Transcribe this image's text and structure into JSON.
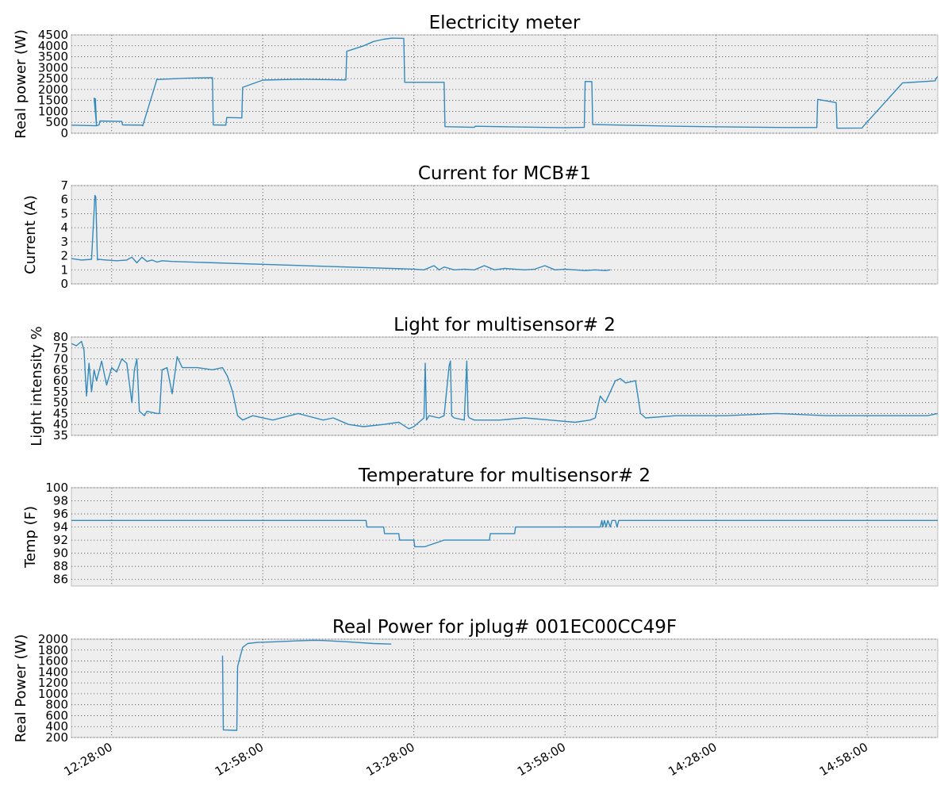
{
  "figure": {
    "line_color": "#348abd",
    "bg_color": "#eeeeee",
    "grid": true,
    "grid_style": "dotted"
  },
  "x_ticks": [
    "12:28:00",
    "12:58:00",
    "13:28:00",
    "13:58:00",
    "14:28:00",
    "14:58:00"
  ],
  "chart_data": [
    {
      "type": "line",
      "title": "Electricity meter",
      "ylabel": "Real power (W)",
      "xlim": [
        "12:20:00",
        "15:12:00"
      ],
      "ylim": [
        0,
        4500
      ],
      "yticks": [
        0,
        500,
        1000,
        1500,
        2000,
        2500,
        3000,
        3500,
        4000,
        4500
      ],
      "series": [
        {
          "x": [
            "12:20:00",
            "12:25:00",
            "12:24:30",
            "12:24:45",
            "12:25:00",
            "12:25:30",
            "12:25:40",
            "12:30:00",
            "12:30:10",
            "12:34:00",
            "12:34:10",
            "12:37:00",
            "12:37:10",
            "12:43:00",
            "12:48:00",
            "12:48:10",
            "12:50:40",
            "12:50:50",
            "12:53:50",
            "12:54:00",
            "12:58:00",
            "13:05:00",
            "13:14:30",
            "13:14:40",
            "13:18:00",
            "13:20:00",
            "13:22:00",
            "13:23:40",
            "13:26:00",
            "13:26:10",
            "13:34:00",
            "13:34:10",
            "13:40:00",
            "13:40:10",
            "13:58:00",
            "14:01:50",
            "14:02:00",
            "14:03:20",
            "14:03:30",
            "14:20:00",
            "14:34:00",
            "14:42:00",
            "14:48:00",
            "14:48:10",
            "14:51:50",
            "14:52:00",
            "14:57:00",
            "14:57:10",
            "15:05:00",
            "15:11:30",
            "15:11:40",
            "15:12:00"
          ],
          "y": [
            370,
            340,
            1600,
            1580,
            340,
            380,
            560,
            540,
            380,
            370,
            340,
            2480,
            2460,
            2520,
            2540,
            380,
            370,
            720,
            700,
            2100,
            2430,
            2470,
            2440,
            3750,
            4000,
            4200,
            4300,
            4350,
            4340,
            2330,
            2330,
            300,
            270,
            320,
            250,
            270,
            2370,
            2360,
            400,
            320,
            280,
            260,
            260,
            1550,
            1400,
            230,
            240,
            300,
            2300,
            2400,
            2500,
            2600
          ]
        }
      ]
    },
    {
      "type": "line",
      "title": "Current for MCB#1",
      "ylabel": "Current (A)",
      "xlim": [
        "12:20:00",
        "15:12:00"
      ],
      "ylim": [
        0,
        7
      ],
      "yticks": [
        0,
        1,
        2,
        3,
        4,
        5,
        6,
        7
      ],
      "series": [
        {
          "x": [
            "12:20:00",
            "12:22:00",
            "12:24:00",
            "12:24:40",
            "12:24:50",
            "12:25:10",
            "12:25:20",
            "12:27:00",
            "12:29:00",
            "12:31:00",
            "12:32:00",
            "12:33:00",
            "12:34:00",
            "12:35:00",
            "12:36:00",
            "12:37:00",
            "12:38:00",
            "12:40:00",
            "13:28:00",
            "13:30:00",
            "13:32:00",
            "13:33:00",
            "13:34:00",
            "13:36:00",
            "13:38:00",
            "13:40:00",
            "13:42:00",
            "13:44:00",
            "13:46:00",
            "13:48:00",
            "13:50:00",
            "13:52:00",
            "13:54:00",
            "13:56:00",
            "13:58:00",
            "14:00:00",
            "14:02:00",
            "14:04:00",
            "14:06:00",
            "14:07:00"
          ],
          "y": [
            1.8,
            1.7,
            1.75,
            6.3,
            6.2,
            1.7,
            1.75,
            1.7,
            1.65,
            1.7,
            1.9,
            1.5,
            1.9,
            1.6,
            1.7,
            1.55,
            1.65,
            1.6,
            1.05,
            1.0,
            1.3,
            1.0,
            1.2,
            1.0,
            1.05,
            1.0,
            1.3,
            1.0,
            1.1,
            1.05,
            1.0,
            1.05,
            1.3,
            1.0,
            1.05,
            1.0,
            0.95,
            1.0,
            0.95,
            1.0
          ]
        }
      ]
    },
    {
      "type": "line",
      "title": "Light for multisensor# 2",
      "ylabel": "Light intensity %",
      "xlim": [
        "12:20:00",
        "15:12:00"
      ],
      "ylim": [
        35,
        80
      ],
      "yticks": [
        35,
        40,
        45,
        50,
        55,
        60,
        65,
        70,
        75,
        80
      ],
      "series": [
        {
          "x": [
            "12:20:00",
            "12:21:00",
            "12:22:00",
            "12:22:30",
            "12:23:00",
            "12:23:30",
            "12:24:00",
            "12:24:30",
            "12:25:00",
            "12:26:00",
            "12:27:00",
            "12:28:00",
            "12:29:00",
            "12:30:00",
            "12:31:00",
            "12:32:00",
            "12:32:30",
            "12:33:00",
            "12:33:30",
            "12:34:00",
            "12:34:30",
            "12:35:00",
            "12:37:00",
            "12:37:30",
            "12:38:00",
            "12:39:00",
            "12:40:00",
            "12:41:00",
            "12:42:00",
            "12:45:00",
            "12:48:00",
            "12:50:00",
            "12:50:30",
            "12:51:00",
            "12:52:00",
            "12:53:00",
            "12:54:00",
            "12:56:00",
            "13:00:00",
            "13:05:00",
            "13:10:00",
            "13:12:00",
            "13:15:00",
            "13:18:00",
            "13:22:00",
            "13:25:00",
            "13:27:00",
            "13:28:00",
            "13:30:00",
            "13:30:15",
            "13:30:30",
            "13:31:00",
            "13:33:00",
            "13:34:00",
            "13:35:00",
            "13:35:15",
            "13:35:30",
            "13:36:00",
            "13:38:00",
            "13:38:30",
            "13:38:45",
            "13:39:00",
            "13:40:00",
            "13:45:00",
            "13:50:00",
            "13:55:00",
            "14:00:00",
            "14:03:00",
            "14:04:00",
            "14:05:00",
            "14:06:00",
            "14:08:00",
            "14:09:00",
            "14:10:00",
            "14:12:00",
            "14:13:00",
            "14:14:00",
            "14:20:00",
            "14:30:00",
            "14:40:00",
            "14:50:00",
            "15:00:00",
            "15:05:00",
            "15:10:00",
            "15:12:00"
          ],
          "y": [
            77,
            76,
            78,
            74,
            53,
            68,
            55,
            65,
            60,
            69,
            58,
            66,
            64,
            70,
            68,
            50,
            65,
            70,
            46,
            45,
            44,
            46,
            45,
            45,
            65,
            66,
            54,
            71,
            66,
            66,
            65,
            66,
            64,
            62,
            55,
            44,
            42,
            44,
            42,
            45,
            42,
            43,
            40,
            39,
            40,
            41,
            38,
            39,
            43,
            68,
            42,
            44,
            43,
            44,
            67,
            69,
            44,
            43,
            42,
            69,
            44,
            43,
            42,
            42,
            43,
            42,
            41,
            42,
            43,
            53,
            50,
            60,
            61,
            59,
            60,
            45,
            43,
            44,
            44,
            45,
            44,
            44,
            44,
            44,
            45
          ]
        }
      ]
    },
    {
      "type": "line",
      "title": "Temperature for multisensor# 2",
      "ylabel": "Temp (F)",
      "xlim": [
        "12:20:00",
        "15:12:00"
      ],
      "ylim": [
        85,
        100
      ],
      "yticks": [
        86,
        88,
        90,
        92,
        94,
        96,
        98,
        100
      ],
      "series": [
        {
          "x": [
            "12:20:00",
            "13:18:30",
            "13:18:40",
            "13:22:00",
            "13:22:10",
            "13:25:00",
            "13:25:10",
            "13:28:00",
            "13:28:10",
            "13:30:00",
            "13:30:10",
            "13:34:00",
            "13:34:10",
            "13:43:00",
            "13:43:10",
            "13:48:00",
            "13:48:10",
            "14:05:00",
            "14:05:20",
            "14:05:30",
            "14:05:50",
            "14:06:10",
            "14:06:30",
            "14:07:00",
            "14:07:20",
            "14:08:00",
            "14:08:20",
            "14:08:40",
            "15:12:00"
          ],
          "y": [
            95,
            95,
            94,
            94,
            93,
            93,
            92,
            92,
            91,
            91,
            91,
            92,
            92,
            92,
            93,
            93,
            94,
            94,
            95,
            94,
            95,
            94,
            95,
            94,
            95,
            95,
            94,
            95,
            95
          ]
        }
      ]
    },
    {
      "type": "line",
      "title": "Real Power for jplug# 001EC00CC49F",
      "ylabel": "Real Power (W)",
      "xlim": [
        "12:20:00",
        "15:12:00"
      ],
      "ylim": [
        200,
        2000
      ],
      "yticks": [
        200,
        400,
        600,
        800,
        1000,
        1200,
        1400,
        1600,
        1800,
        2000
      ],
      "series": [
        {
          "x": [
            "12:50:00",
            "12:50:10",
            "12:52:50",
            "12:53:00",
            "12:54:00",
            "12:55:00",
            "12:57:00",
            "13:00:00",
            "13:05:00",
            "13:08:00",
            "13:10:00",
            "13:15:00",
            "13:20:00",
            "13:23:30"
          ],
          "y": [
            1700,
            340,
            330,
            1500,
            1850,
            1920,
            1940,
            1950,
            1970,
            1980,
            1975,
            1950,
            1920,
            1910
          ]
        }
      ]
    }
  ]
}
